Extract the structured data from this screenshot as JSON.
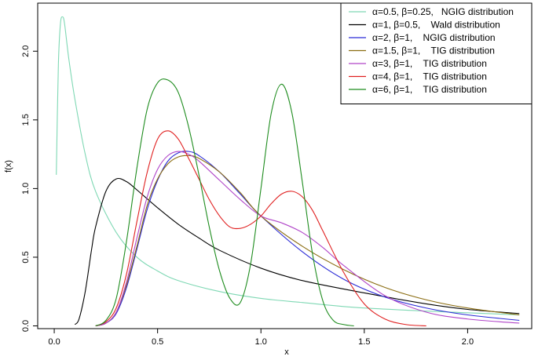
{
  "chart_data": {
    "type": "line",
    "title": "",
    "xlabel": "x",
    "ylabel": "f(x)",
    "xlim": [
      -0.08,
      2.31
    ],
    "ylim": [
      -0.02,
      2.35
    ],
    "x_ticks": [
      0.0,
      0.5,
      1.0,
      1.5,
      2.0
    ],
    "x_tick_labels": [
      "0.0",
      "0.5",
      "1.0",
      "1.5",
      "2.0"
    ],
    "y_ticks": [
      0.0,
      0.5,
      1.0,
      1.5,
      2.0
    ],
    "y_tick_labels": [
      "0.0",
      "0.5",
      "1.0",
      "1.5",
      "2.0"
    ],
    "grid": false,
    "legend_position": "top-right",
    "series": [
      {
        "name": "α=0.5, β=0.25,   NGIG distribution",
        "color": "#7fd8b4",
        "x": [
          0.01,
          0.02,
          0.03,
          0.04,
          0.05,
          0.07,
          0.1,
          0.15,
          0.2,
          0.3,
          0.4,
          0.5,
          0.6,
          0.8,
          1.0,
          1.2,
          1.5,
          2.0,
          2.25
        ],
        "y": [
          1.1,
          1.9,
          2.2,
          2.25,
          2.2,
          1.95,
          1.65,
          1.25,
          0.98,
          0.68,
          0.5,
          0.4,
          0.33,
          0.25,
          0.2,
          0.17,
          0.13,
          0.095,
          0.08
        ]
      },
      {
        "name": "α=1, β=0.5,    Wald distribution",
        "color": "#000000",
        "x": [
          0.1,
          0.12,
          0.15,
          0.18,
          0.2,
          0.25,
          0.3,
          0.35,
          0.4,
          0.5,
          0.6,
          0.7,
          0.8,
          1.0,
          1.2,
          1.5,
          1.8,
          2.0,
          2.25
        ],
        "y": [
          0.01,
          0.05,
          0.25,
          0.55,
          0.72,
          0.98,
          1.07,
          1.05,
          0.99,
          0.86,
          0.74,
          0.64,
          0.55,
          0.42,
          0.33,
          0.24,
          0.16,
          0.12,
          0.09
        ]
      },
      {
        "name": "α=2, β=1,    NGIG distribution",
        "color": "#2b2bd6",
        "x": [
          0.2,
          0.25,
          0.3,
          0.35,
          0.4,
          0.45,
          0.5,
          0.55,
          0.6,
          0.65,
          0.7,
          0.8,
          0.9,
          1.0,
          1.2,
          1.4,
          1.6,
          1.8,
          2.0,
          2.25
        ],
        "y": [
          0.0,
          0.02,
          0.09,
          0.28,
          0.56,
          0.85,
          1.06,
          1.2,
          1.26,
          1.27,
          1.24,
          1.12,
          0.96,
          0.8,
          0.54,
          0.34,
          0.21,
          0.13,
          0.08,
          0.04
        ]
      },
      {
        "name": "α=1.5, β=1,    TIG distribution",
        "color": "#8b6d12",
        "x": [
          0.2,
          0.25,
          0.3,
          0.35,
          0.4,
          0.45,
          0.5,
          0.55,
          0.6,
          0.65,
          0.7,
          0.8,
          0.9,
          1.0,
          1.2,
          1.4,
          1.6,
          1.8,
          2.0,
          2.25
        ],
        "y": [
          0.0,
          0.02,
          0.1,
          0.3,
          0.58,
          0.88,
          1.07,
          1.18,
          1.23,
          1.24,
          1.22,
          1.12,
          0.97,
          0.8,
          0.58,
          0.41,
          0.28,
          0.19,
          0.13,
          0.08
        ]
      },
      {
        "name": "α=3, β=1,    TIG distribution",
        "color": "#b044c8",
        "x": [
          0.2,
          0.25,
          0.3,
          0.35,
          0.4,
          0.45,
          0.5,
          0.55,
          0.6,
          0.65,
          0.7,
          0.8,
          0.9,
          1.0,
          1.1,
          1.2,
          1.3,
          1.4,
          1.6,
          1.8,
          2.0,
          2.25
        ],
        "y": [
          0.0,
          0.02,
          0.1,
          0.32,
          0.64,
          0.94,
          1.14,
          1.24,
          1.27,
          1.25,
          1.2,
          1.06,
          0.92,
          0.8,
          0.75,
          0.68,
          0.57,
          0.44,
          0.22,
          0.1,
          0.05,
          0.02
        ]
      },
      {
        "name": "α=4, β=1,    TIG distribution",
        "color": "#e02020",
        "x": [
          0.2,
          0.25,
          0.3,
          0.35,
          0.4,
          0.45,
          0.5,
          0.55,
          0.6,
          0.65,
          0.7,
          0.75,
          0.8,
          0.85,
          0.9,
          0.95,
          1.0,
          1.05,
          1.1,
          1.15,
          1.2,
          1.25,
          1.3,
          1.4,
          1.5,
          1.6,
          1.7,
          1.8
        ],
        "y": [
          0.0,
          0.03,
          0.13,
          0.38,
          0.76,
          1.12,
          1.36,
          1.42,
          1.36,
          1.22,
          1.07,
          0.92,
          0.8,
          0.72,
          0.71,
          0.74,
          0.8,
          0.89,
          0.96,
          0.98,
          0.94,
          0.84,
          0.69,
          0.39,
          0.16,
          0.05,
          0.01,
          0.0
        ]
      },
      {
        "name": "α=6, β=1,    TIG distribution",
        "color": "#1e8c1e",
        "x": [
          0.2,
          0.25,
          0.3,
          0.35,
          0.4,
          0.45,
          0.5,
          0.55,
          0.6,
          0.65,
          0.7,
          0.75,
          0.8,
          0.85,
          0.9,
          0.95,
          1.0,
          1.05,
          1.1,
          1.15,
          1.2,
          1.25,
          1.3,
          1.35,
          1.4,
          1.45
        ],
        "y": [
          0.0,
          0.04,
          0.2,
          0.62,
          1.15,
          1.58,
          1.77,
          1.79,
          1.7,
          1.45,
          1.1,
          0.72,
          0.4,
          0.2,
          0.17,
          0.45,
          1.0,
          1.55,
          1.76,
          1.55,
          1.05,
          0.52,
          0.18,
          0.04,
          0.01,
          0.0
        ]
      }
    ]
  }
}
